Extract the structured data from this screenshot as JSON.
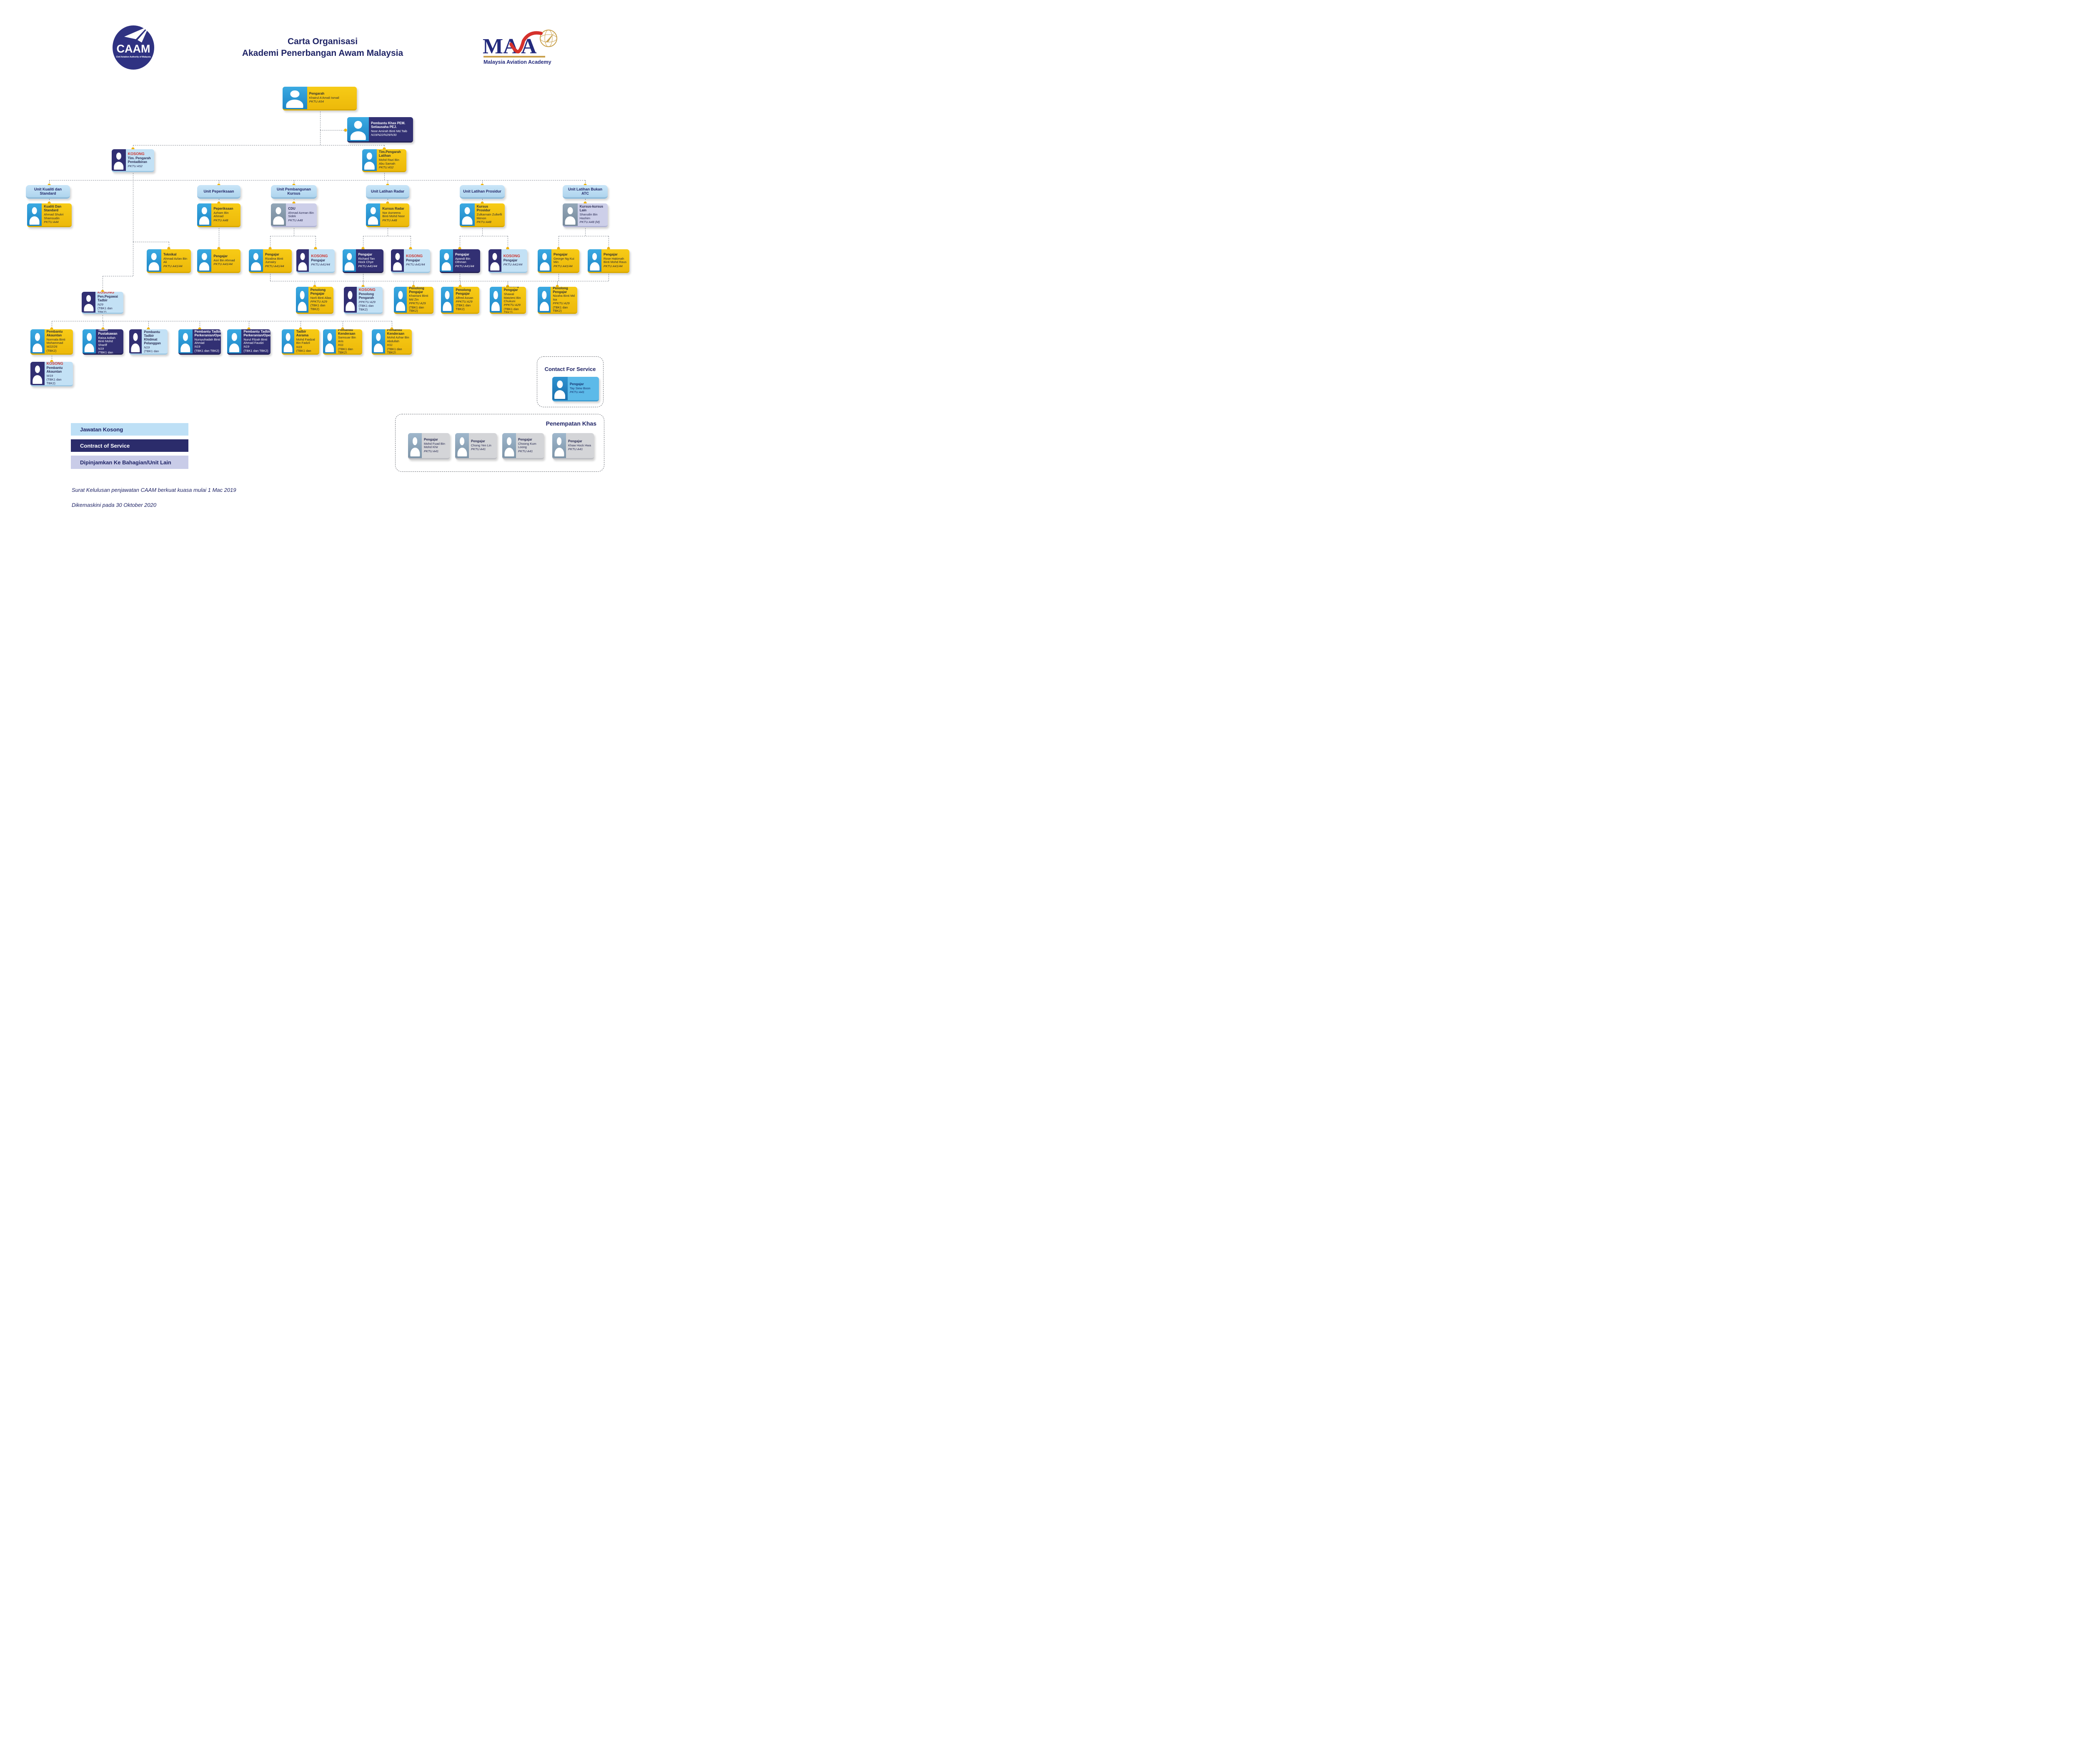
{
  "header": {
    "title_line1": "Carta Organisasi",
    "title_line2": "Akademi Penerbangan Awam Malaysia",
    "caam": {
      "abbr": "CAAM",
      "tagline": "Civil Aviation Authority of Malaysia"
    },
    "mava": {
      "abbr": "MAvA",
      "tagline": "Malaysia Aviation Academy"
    }
  },
  "colors": {
    "accent_yellow": "#F2BB0D",
    "navy": "#312F72",
    "light_blue": "#C3E1F5",
    "lavender": "#CDCFE9",
    "unit_blue": "#BEE0F6",
    "vacant_red": "#CE342E",
    "title_navy": "#1F2466"
  },
  "nodes": {
    "pengarah": {
      "title": "Pengarah",
      "name": "Khairul A'Amali Ismail",
      "grade": "PKTU A54"
    },
    "pembantu_khas": {
      "title": "Pembantu Khas PEM. Setiausaha PEJ.",
      "name": "Noor Amirah Binti Md.Taib",
      "grade": "N19/N22/N29/N30"
    },
    "tim_pentadbiran": {
      "vacant": "KOSONG",
      "title": "Tim. Pengarah Pentadbiran",
      "grade": "PKTU A52"
    },
    "tim_latihan": {
      "title": "Tim.Pengarah Latihan",
      "name": "Mohd Razi Bin Abu Samah",
      "grade": "PKTU A52"
    },
    "unit_kualiti": {
      "label": "Unit Kualiti dan Standard"
    },
    "unit_peperiksaan": {
      "label": "Unit Peperiksaan"
    },
    "unit_pembangunan": {
      "label": "Unit Pembangunan Kursus"
    },
    "unit_radar": {
      "label": "Unit Latihan Radar"
    },
    "unit_prosidur": {
      "label": "Unit Latihan Prosidur"
    },
    "unit_bukan_atc": {
      "label": "Unit Latihan Bukan ATC"
    },
    "kualiti_head": {
      "title": "Kualiti Dan Standard",
      "name": "Ahmad Shukri Shamsudin",
      "grade": "PKTU A44"
    },
    "peperiksaan_head": {
      "title": "Peperiksaan",
      "name": "Azham Bin Ahmad",
      "grade": "PKTU A48"
    },
    "cdu": {
      "title": "CDU",
      "name": "Ahmad Azman Bin Sidek",
      "grade": "PKTU A48"
    },
    "radar_head": {
      "title": "Kursus Radar",
      "name": "Nor Asmeera Binti Mohd Noor",
      "grade": "PKTU A48"
    },
    "prosidur_head": {
      "title": "Kursus Prosidur",
      "name": "Zulkarnain Zulkefli Menon",
      "grade": "PKTU A48"
    },
    "lain_head": {
      "title": "Kursus-kursus Lain",
      "name": "Sharudin Bin Hashim",
      "grade": "PKTU A48 (M)"
    },
    "teknikal": {
      "title": "Teknikal",
      "name": "Ahmad Azlan Bin Ali",
      "grade": "PKTU A41/44"
    },
    "asri": {
      "title": "Pengajar",
      "name": "Asri Bin Ahmad",
      "grade": "PKTU A41/44"
    },
    "rizalina": {
      "title": "Pengajar",
      "name": "Rizalina Binti Jumairy",
      "grade": "PKTU A41/44"
    },
    "kosong_pengajar_1": {
      "vacant": "KOSONG",
      "title": "Pengajar",
      "grade": "PKTU A41/44"
    },
    "richard": {
      "title": "Pengajar",
      "name": "Richard Tan Hock Chye",
      "grade": "PKTU A41/44"
    },
    "kosong_pengajar_2": {
      "vacant": "KOSONG",
      "title": "Pengajar",
      "grade": "PKTU A41/44"
    },
    "apandi": {
      "title": "Pengajar",
      "name": "Apandi Bin Othman",
      "grade": "PKTU A41/44"
    },
    "kosong_pengajar_3": {
      "vacant": "KOSONG",
      "title": "Pengajar",
      "grade": "PKTU A41/44"
    },
    "george": {
      "title": "Pengajar",
      "name": "George Ng Kui Min",
      "grade": "PKTU A41/44"
    },
    "rose": {
      "title": "Pengajar",
      "name": "Rose Hakimah Binti Mohd Raus",
      "grade": "PKTU A41/44"
    },
    "norli": {
      "title": "Penolong Pengajar",
      "name": "Norli Binti Alias",
      "grade": "PPKTU A29",
      "extra": "(TBK1 dan TBK2)"
    },
    "kosong_pen_pengarah": {
      "vacant": "KOSONG",
      "title": "Penolong Pengarah",
      "grade": "PPKTU A29",
      "extra": "(TBK1 dan TBK2)"
    },
    "khairiani": {
      "title": "Penolong Pengajar",
      "name": "Khairiani Binti Md Zin",
      "grade": "PPKTU A29",
      "extra": "(TBK1 dan TBK2)"
    },
    "alfred": {
      "title": "Penolong Pengajar",
      "name": "Alfred Assan",
      "grade": "PPKTU A29",
      "extra": "(TBK1 dan TBK2)"
    },
    "shawal": {
      "title": "Penolong Pengajar",
      "name": "Shawal Matzieni Bin Chukuni",
      "grade": "PPKTU A29",
      "extra": "(TBK1 dan TBK2)"
    },
    "nizaha": {
      "title": "Penolong Pengajar",
      "name": "Nizaha Binti Md Isa",
      "grade": "PPKTU A29",
      "extra": "(TBK1 dan TBK2)"
    },
    "kosong_pen_pegawai": {
      "vacant": "KOSONG",
      "title": "Pen.Pegawai Tadbir",
      "grade": "N29",
      "extra": "(TBK1 dan TBK2)"
    },
    "normala": {
      "title": "Pembantu Akauntan",
      "name": "Normala Binti Mohammad",
      "grade": "W22/26",
      "extra": "(TBK2)"
    },
    "raisa": {
      "title": "Pembantu Tadbir Pustakawan",
      "name": "Raisa Adilah Binti Mohd Shariff",
      "grade": "N19",
      "extra": "(TBK1 dan TBK2)"
    },
    "kosong_khidmat": {
      "vacant": "KOSONG",
      "title": "Pembantu Tadbir Khidmat Pelanggan",
      "grade": "N19",
      "extra": "(TBK1 dan TBK2)"
    },
    "nursyuhadah": {
      "title": "Pembantu Tadbir Perkeranian/Operasi",
      "name": "Nursyuhadah Binti Ahmad",
      "grade": "N19",
      "extra": "(TBK1 dan TBK2)"
    },
    "nurul": {
      "title": "Pembantu Tadbir Perkeranian/Operasi",
      "name": "Nurul Filzah Binti Ahmad Faudzi",
      "grade": "N19",
      "extra": "(TBK1 dan TBK2)"
    },
    "faidzal": {
      "title": "Pembantu Tadbir Asrama",
      "name": "Mohd Faidzal Bin Fadzil",
      "grade": "N19",
      "extra": "(TBK1 dan TBK2)"
    },
    "samsuar": {
      "title": "Pemandu Kenderaan",
      "name": "Samsuar Bin Aris",
      "grade": "H11",
      "extra": "(TBK1 dan TBK2)"
    },
    "azhar": {
      "title": "Pemandu Kenderaan",
      "name": "Mohd Azhar Bin Abdullah",
      "grade": "H11",
      "extra": "(TBK1 dan TBK2)"
    },
    "kosong_akauntan": {
      "vacant": "KOSONG",
      "title": "Pembantu Akauntan",
      "grade": "W19",
      "extra": "(TBK1 dan TBK2)"
    }
  },
  "contact_panel": {
    "title": "Contact For Service",
    "card": {
      "title": "Pengajar",
      "name": "Tay Siew Boon",
      "grade": "PKTU A41"
    }
  },
  "penempatan_panel": {
    "title": "Penempatan Khas",
    "cards": [
      {
        "title": "Pengajar",
        "name": "Mohd Fuad Bin Mohd Khir",
        "grade": "PKTU A41"
      },
      {
        "title": "Pengajar",
        "name": "Chong Yen Lin",
        "grade": "PKTU A41"
      },
      {
        "title": "Pengajar",
        "name": "Choong Kum Loong",
        "grade": "PKTU A41"
      },
      {
        "title": "Pengajar",
        "name": "Khaw Hock Hwa",
        "grade": "PKTU A41"
      }
    ]
  },
  "legend": {
    "items": [
      {
        "label": "Jawatan Kosong",
        "kind": "vacant"
      },
      {
        "label": "Contract of Service",
        "kind": "contract"
      },
      {
        "label": "Dipinjamkan Ke Bahagian/Unit Lain",
        "kind": "loaned"
      }
    ]
  },
  "footer": {
    "line1": "Surat Kelulusan penjawatan CAAM berkuat kuasa mulai 1 Mac 2019",
    "line2": "Dikemaskini pada 30 Oktober 2020"
  }
}
